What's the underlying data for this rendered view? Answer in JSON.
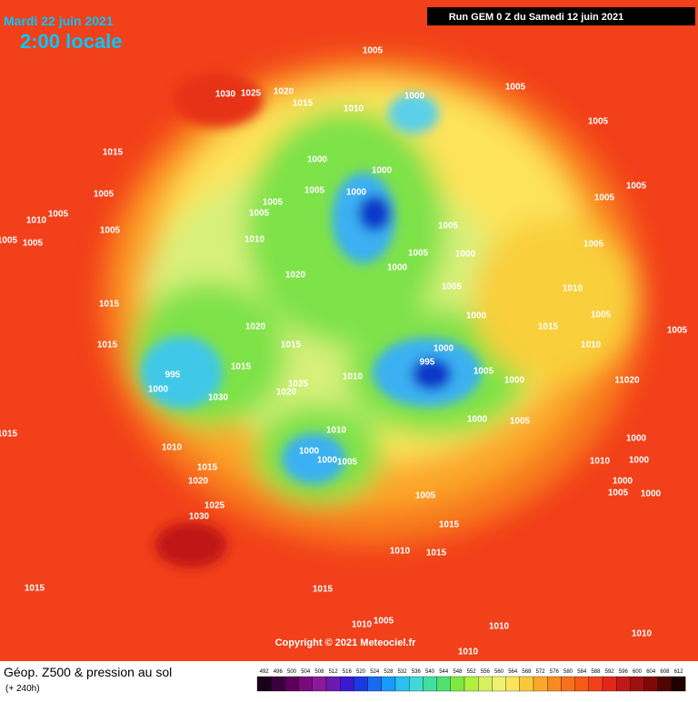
{
  "header": {
    "date": "Mardi 22 juin 2021",
    "time": "2:00 locale",
    "run": "Run GEM 0 Z du Samedi 12 juin 2021"
  },
  "footer": {
    "title": "Géop. Z500 & pression au sol",
    "lead": "(+ 240h)",
    "copyright": "Copyright © 2021 Meteociel.fr"
  },
  "scale": [
    492,
    496,
    500,
    504,
    508,
    512,
    516,
    520,
    524,
    528,
    532,
    536,
    540,
    544,
    548,
    552,
    556,
    560,
    564,
    568,
    572,
    576,
    580,
    584,
    588,
    592,
    596,
    600,
    604,
    608,
    612
  ],
  "isobars": [
    "1005",
    "1030",
    "1025",
    "1020",
    "1015",
    "1010",
    "1000",
    "1005",
    "1015",
    "1000",
    "1000",
    "1005",
    "1000",
    "1005",
    "1005",
    "1005",
    "1005",
    "1010",
    "1005",
    "1005",
    "1005",
    "1010",
    "1005",
    "1000",
    "1005",
    "1000",
    "1020",
    "1005",
    "1005",
    "1005",
    "1005",
    "1005",
    "1010",
    "1005",
    "1005",
    "1015",
    "1010",
    "1000",
    "1015",
    "1020",
    "1015",
    "1015",
    "995",
    "1000",
    "1015",
    "1025",
    "1020",
    "1010",
    "995",
    "1000",
    "1005",
    "1000",
    "1000",
    "1005",
    "1030",
    "1015",
    "1010",
    "1010",
    "1000",
    "1000",
    "1005",
    "1015",
    "1020",
    "1025",
    "1030",
    "1005",
    "1015",
    "1010",
    "1015",
    "1015",
    "1015",
    "1010",
    "1005",
    "1010",
    "1010",
    "1010",
    "1000",
    "1005",
    "1000",
    "1010",
    "1000",
    "11020",
    "1000"
  ]
}
